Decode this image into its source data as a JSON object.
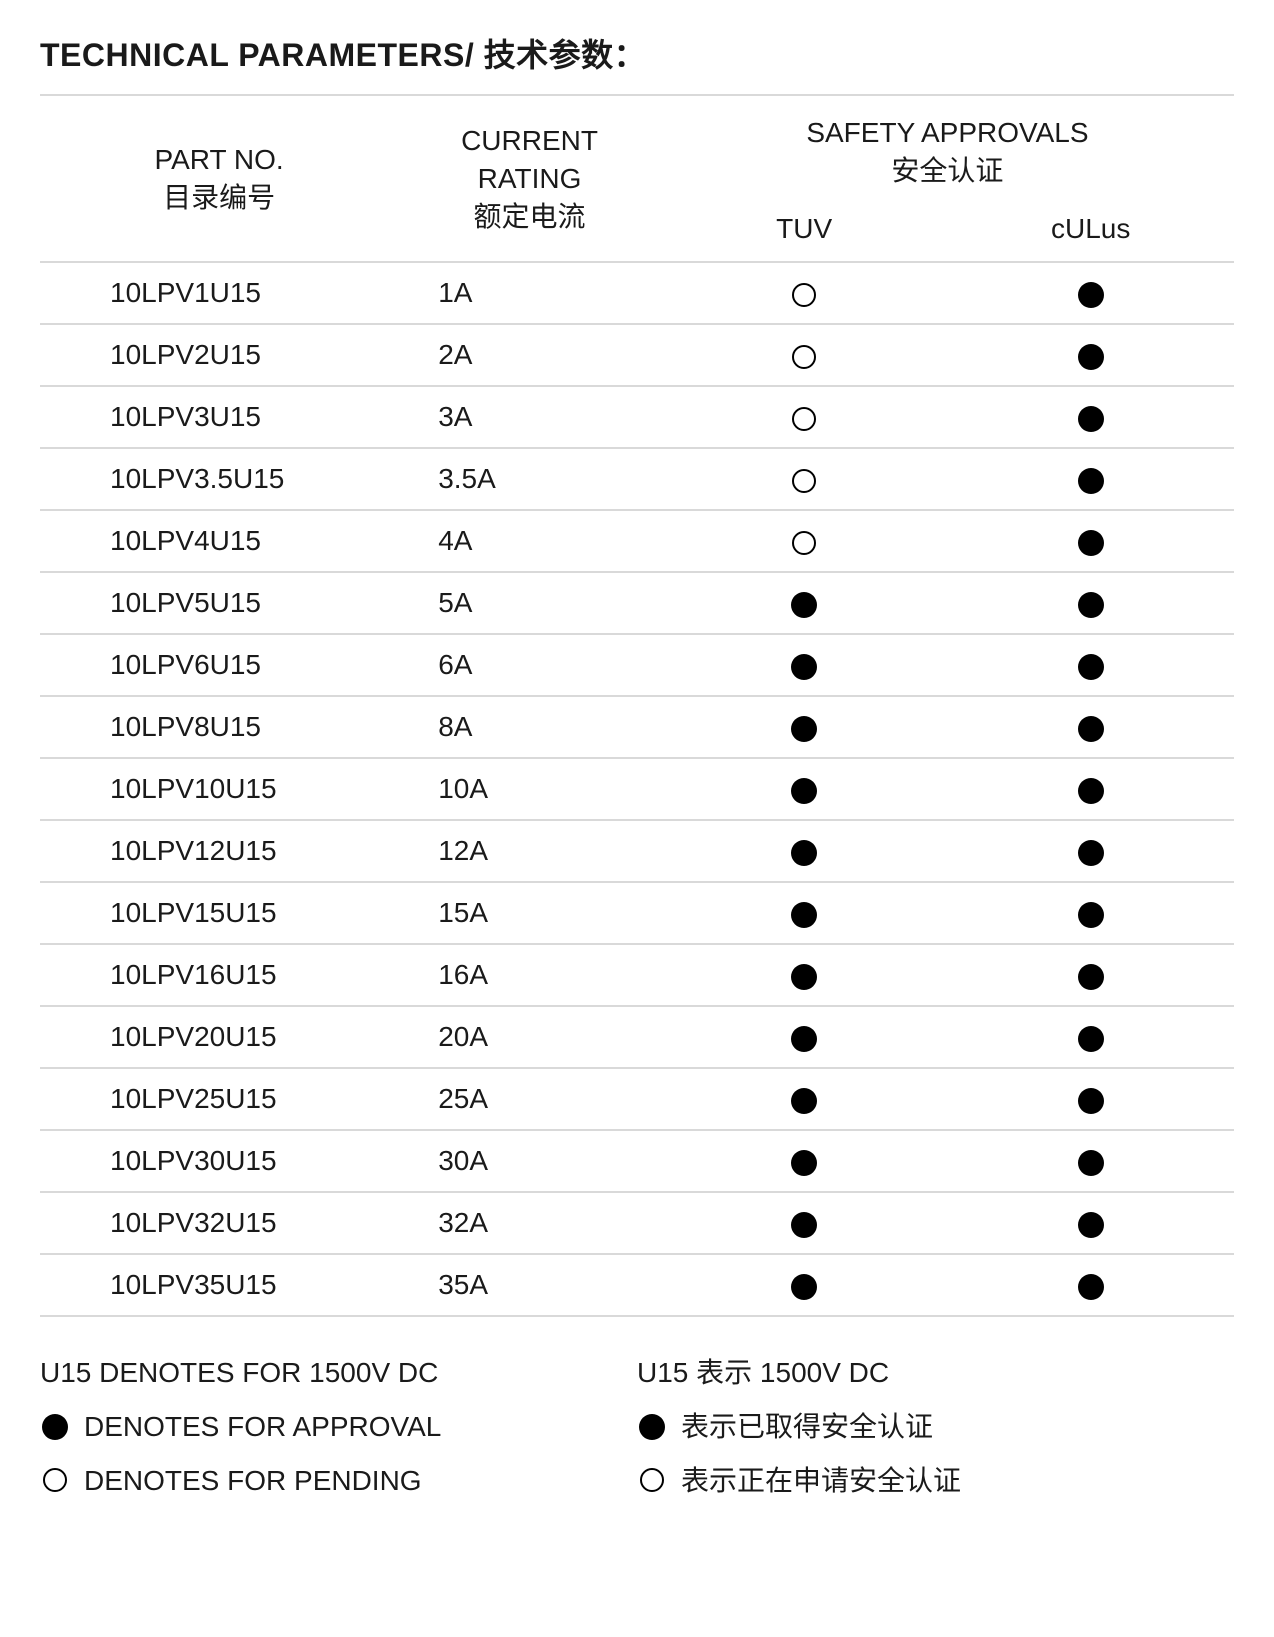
{
  "title": "TECHNICAL PARAMETERS/ 技术参数：",
  "headers": {
    "part_no_en": "PART  NO.",
    "part_no_cn": "目录编号",
    "current_en": "CURRENT",
    "current_mid": "RATING",
    "current_cn": "额定电流",
    "safety_en": "SAFETY APPROVALS",
    "safety_cn": "安全认证",
    "tuv": "TUV",
    "culus": "cULus"
  },
  "rows": [
    {
      "part": "10LPV1U15",
      "rating": "1A",
      "tuv": "open",
      "culus": "filled"
    },
    {
      "part": "10LPV2U15",
      "rating": "2A",
      "tuv": "open",
      "culus": "filled"
    },
    {
      "part": "10LPV3U15",
      "rating": "3A",
      "tuv": "open",
      "culus": "filled"
    },
    {
      "part": "10LPV3.5U15",
      "rating": "3.5A",
      "tuv": "open",
      "culus": "filled"
    },
    {
      "part": "10LPV4U15",
      "rating": "4A",
      "tuv": "open",
      "culus": "filled"
    },
    {
      "part": "10LPV5U15",
      "rating": "5A",
      "tuv": "filled",
      "culus": "filled"
    },
    {
      "part": "10LPV6U15",
      "rating": "6A",
      "tuv": "filled",
      "culus": "filled"
    },
    {
      "part": "10LPV8U15",
      "rating": "8A",
      "tuv": "filled",
      "culus": "filled"
    },
    {
      "part": "10LPV10U15",
      "rating": "10A",
      "tuv": "filled",
      "culus": "filled"
    },
    {
      "part": "10LPV12U15",
      "rating": "12A",
      "tuv": "filled",
      "culus": "filled"
    },
    {
      "part": "10LPV15U15",
      "rating": "15A",
      "tuv": "filled",
      "culus": "filled"
    },
    {
      "part": "10LPV16U15",
      "rating": "16A",
      "tuv": "filled",
      "culus": "filled"
    },
    {
      "part": "10LPV20U15",
      "rating": "20A",
      "tuv": "filled",
      "culus": "filled"
    },
    {
      "part": "10LPV25U15",
      "rating": "25A",
      "tuv": "filled",
      "culus": "filled"
    },
    {
      "part": "10LPV30U15",
      "rating": "30A",
      "tuv": "filled",
      "culus": "filled"
    },
    {
      "part": "10LPV32U15",
      "rating": "32A",
      "tuv": "filled",
      "culus": "filled"
    },
    {
      "part": "10LPV35U15",
      "rating": "35A",
      "tuv": "filled",
      "culus": "filled"
    }
  ],
  "legend": {
    "left": {
      "line1": "U15 DENOTES FOR 1500V DC",
      "approval": "DENOTES FOR APPROVAL",
      "pending": "DENOTES FOR PENDING"
    },
    "right": {
      "line1": "U15 表示 1500V DC",
      "approval": "表示已取得安全认证",
      "pending": "表示正在申请安全认证"
    }
  },
  "style": {
    "border_color": "#d9d9d9",
    "text_color": "#1a1a1a",
    "background": "#ffffff",
    "filled_color": "#000000",
    "open_border": "#000000",
    "title_fontsize": 32,
    "body_fontsize": 28,
    "circle_diameter": 26,
    "col_widths": [
      "30%",
      "22%",
      "24%",
      "24%"
    ]
  }
}
